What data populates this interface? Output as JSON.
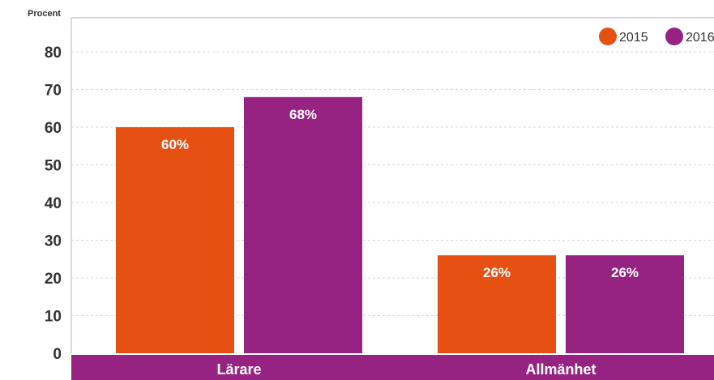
{
  "chart_data": {
    "type": "bar",
    "ylabel": "Procent",
    "categories": [
      "Lärare",
      "Allmänhet"
    ],
    "series": [
      {
        "name": "2015",
        "values": [
          60,
          26
        ],
        "labels": [
          "60%",
          "26%"
        ],
        "color": "#E65012"
      },
      {
        "name": "2016",
        "values": [
          68,
          26
        ],
        "labels": [
          "68%",
          "26%"
        ],
        "color": "#962281"
      }
    ],
    "ylim": [
      0,
      80
    ],
    "yticks": [
      "0",
      "10",
      "20",
      "30",
      "40",
      "50",
      "60",
      "70",
      "80"
    ],
    "grid": true,
    "legend_position": "top-right",
    "category_bar_color": "#962281"
  }
}
